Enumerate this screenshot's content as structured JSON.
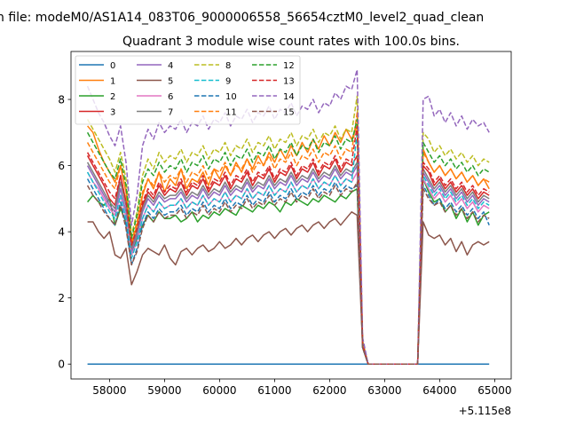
{
  "chart_data": {
    "type": "line",
    "suptitle": "n file: modeM0/AS1A14_083T06_9000006558_56654cztM0_level2_quad_clean",
    "title": "Quadrant 3 module wise count rates with 100.0s bins.",
    "xlabel": "",
    "ylabel": "",
    "x_offset_label": "+5.115e8",
    "x_offset": 511500000,
    "xlim": [
      57300,
      65300
    ],
    "ylim": [
      -0.45,
      9.45
    ],
    "xticks": [
      58000,
      59000,
      60000,
      61000,
      62000,
      63000,
      64000,
      65000
    ],
    "xtick_labels": [
      "58000",
      "59000",
      "60000",
      "61000",
      "62000",
      "63000",
      "64000",
      "65000"
    ],
    "yticks": [
      0,
      2,
      4,
      6,
      8
    ],
    "ytick_labels": [
      "0",
      "2",
      "4",
      "6",
      "8"
    ],
    "grid": false,
    "legend_position": "top-left",
    "legend_columns": 4,
    "data_gap": {
      "start": 62800,
      "end": 63600,
      "value": 0
    },
    "x_start": 57600,
    "x_end": 65000,
    "step": 100,
    "series": [
      {
        "name": "0",
        "color": "#1f77b4",
        "dash": "solid",
        "segA": [
          0,
          0,
          0,
          0,
          0,
          0,
          0,
          0,
          0,
          0,
          0,
          0,
          0,
          0,
          0,
          0,
          0,
          0,
          0,
          0,
          0,
          0,
          0,
          0,
          0,
          0,
          0,
          0,
          0,
          0,
          0,
          0,
          0,
          0,
          0,
          0,
          0,
          0,
          0,
          0,
          0,
          0,
          0,
          0,
          0,
          0,
          0,
          0,
          0,
          0,
          0,
          0
        ],
        "segB": [
          0,
          0,
          0,
          0,
          0,
          0,
          0,
          0,
          0,
          0,
          0,
          0,
          0,
          0
        ]
      },
      {
        "name": "1",
        "color": "#ff7f0e",
        "dash": "solid",
        "segA": [
          7.2,
          7.0,
          6.5,
          6.1,
          5.8,
          5.5,
          6.0,
          5.2,
          3.6,
          4.2,
          5.1,
          5.6,
          5.3,
          5.8,
          5.2,
          5.6,
          5.4,
          5.9,
          5.3,
          5.6,
          5.5,
          5.8,
          5.4,
          5.9,
          5.6,
          6.0,
          5.7,
          6.1,
          5.8,
          6.2,
          5.9,
          6.3,
          6.0,
          6.4,
          6.1,
          6.5,
          6.2,
          6.6,
          6.3,
          6.7,
          6.4,
          6.8,
          6.5,
          6.9,
          6.6,
          7.0,
          6.7,
          7.1,
          6.8,
          7.2,
          0.6,
          0
        ],
        "segB": [
          0,
          6.5,
          6.1,
          5.8,
          6.0,
          5.7,
          5.9,
          5.6,
          5.8,
          5.5,
          5.7,
          5.4,
          5.6,
          5.3
        ]
      },
      {
        "name": "2",
        "color": "#2ca02c",
        "dash": "solid",
        "segA": [
          4.9,
          5.1,
          4.9,
          4.8,
          5.0,
          4.2,
          4.7,
          4.3,
          3.3,
          3.8,
          4.2,
          4.5,
          4.3,
          4.6,
          4.4,
          4.4,
          4.5,
          4.3,
          4.4,
          4.6,
          4.3,
          4.5,
          4.4,
          4.6,
          4.5,
          4.7,
          4.6,
          4.5,
          4.8,
          4.7,
          4.6,
          4.8,
          4.7,
          4.9,
          4.8,
          4.6,
          4.9,
          4.8,
          5.0,
          4.9,
          4.8,
          5.0,
          4.9,
          5.1,
          5.0,
          4.9,
          5.1,
          5.0,
          5.2,
          5.3,
          0.5,
          0
        ],
        "segB": [
          0,
          5.6,
          5.2,
          4.9,
          5.0,
          4.6,
          4.8,
          4.4,
          4.7,
          4.3,
          4.6,
          4.2,
          4.5,
          4.6
        ]
      },
      {
        "name": "3",
        "color": "#d62728",
        "dash": "solid",
        "segA": [
          6.3,
          6.0,
          5.7,
          5.4,
          5.0,
          4.8,
          5.7,
          4.9,
          3.5,
          4.0,
          4.8,
          5.2,
          5.0,
          5.4,
          5.1,
          5.3,
          5.2,
          5.5,
          5.1,
          5.4,
          5.3,
          5.6,
          5.2,
          5.5,
          5.4,
          5.7,
          5.3,
          5.6,
          5.5,
          5.8,
          5.4,
          5.7,
          5.6,
          5.9,
          5.5,
          5.8,
          5.7,
          6.0,
          5.6,
          5.9,
          5.8,
          6.1,
          5.7,
          6.0,
          5.9,
          6.2,
          5.8,
          6.1,
          6.0,
          6.3,
          0.6,
          0
        ],
        "segB": [
          0,
          6.0,
          5.8,
          5.4,
          5.6,
          5.3,
          5.5,
          5.2,
          5.4,
          5.1,
          5.3,
          5.0,
          5.2,
          5.1
        ]
      },
      {
        "name": "4",
        "color": "#9467bd",
        "dash": "solid",
        "segA": [
          6.0,
          5.7,
          5.4,
          5.1,
          4.8,
          4.6,
          5.3,
          4.6,
          3.4,
          3.9,
          4.6,
          5.0,
          4.8,
          5.1,
          4.9,
          5.0,
          5.0,
          5.2,
          4.9,
          5.1,
          5.0,
          5.3,
          5.0,
          5.2,
          5.1,
          5.4,
          5.1,
          5.3,
          5.2,
          5.5,
          5.2,
          5.4,
          5.3,
          5.6,
          5.3,
          5.5,
          5.4,
          5.7,
          5.4,
          5.6,
          5.5,
          5.8,
          5.5,
          5.7,
          5.6,
          5.9,
          5.6,
          5.8,
          5.7,
          6.0,
          0.6,
          0
        ],
        "segB": [
          0,
          5.8,
          5.5,
          5.2,
          5.4,
          5.1,
          5.3,
          5.0,
          5.2,
          4.9,
          5.1,
          4.8,
          5.0,
          4.9
        ]
      },
      {
        "name": "5",
        "color": "#8c564b",
        "dash": "solid",
        "segA": [
          4.3,
          4.3,
          4.0,
          3.8,
          4.0,
          3.3,
          3.2,
          3.5,
          2.4,
          2.8,
          3.3,
          3.5,
          3.4,
          3.3,
          3.6,
          3.2,
          3.0,
          3.4,
          3.5,
          3.3,
          3.5,
          3.6,
          3.4,
          3.5,
          3.7,
          3.5,
          3.6,
          3.8,
          3.6,
          3.8,
          3.9,
          3.7,
          3.9,
          4.0,
          3.8,
          4.0,
          4.1,
          3.9,
          4.1,
          4.2,
          4.0,
          4.2,
          4.3,
          4.1,
          4.3,
          4.4,
          4.2,
          4.4,
          4.6,
          4.5,
          0.5,
          0
        ],
        "segB": [
          0,
          4.3,
          3.9,
          3.8,
          3.9,
          3.6,
          3.8,
          3.4,
          3.7,
          3.3,
          3.6,
          3.7,
          3.6,
          3.7
        ]
      },
      {
        "name": "6",
        "color": "#e377c2",
        "dash": "solid",
        "segA": [
          5.8,
          5.5,
          5.3,
          5.0,
          4.7,
          4.5,
          5.1,
          4.4,
          3.3,
          3.7,
          4.4,
          4.8,
          4.6,
          4.9,
          4.7,
          4.8,
          4.8,
          5.0,
          4.7,
          4.9,
          4.8,
          5.1,
          4.8,
          5.0,
          4.9,
          5.2,
          4.9,
          5.1,
          5.0,
          5.3,
          5.0,
          5.2,
          5.1,
          5.4,
          5.1,
          5.3,
          5.2,
          5.5,
          5.2,
          5.4,
          5.3,
          5.6,
          5.3,
          5.5,
          5.4,
          5.7,
          5.4,
          5.6,
          5.5,
          5.8,
          0.6,
          0
        ],
        "segB": [
          0,
          5.6,
          5.3,
          5.0,
          5.2,
          4.9,
          5.1,
          4.8,
          5.0,
          4.7,
          4.9,
          4.6,
          4.8,
          4.7
        ]
      },
      {
        "name": "7",
        "color": "#7f7f7f",
        "dash": "solid",
        "segA": [
          6.1,
          5.8,
          5.5,
          5.2,
          4.9,
          4.7,
          5.5,
          4.8,
          3.5,
          4.0,
          4.7,
          5.1,
          4.9,
          5.2,
          5.0,
          5.1,
          5.1,
          5.3,
          5.0,
          5.2,
          5.1,
          5.4,
          5.1,
          5.3,
          5.2,
          5.5,
          5.2,
          5.4,
          5.3,
          5.6,
          5.3,
          5.5,
          5.4,
          5.7,
          5.4,
          5.6,
          5.5,
          5.8,
          5.5,
          5.7,
          5.6,
          5.9,
          5.6,
          5.8,
          5.7,
          6.0,
          5.7,
          5.9,
          5.8,
          6.1,
          0.6,
          0
        ],
        "segB": [
          0,
          5.9,
          5.6,
          5.3,
          5.5,
          5.2,
          5.4,
          5.1,
          5.3,
          5.0,
          5.2,
          4.9,
          5.1,
          5.0
        ]
      },
      {
        "name": "8",
        "color": "#bcbd22",
        "dash": "dashed",
        "segA": [
          7.4,
          7.1,
          6.8,
          6.5,
          6.2,
          5.8,
          6.4,
          5.6,
          3.9,
          4.6,
          5.7,
          6.2,
          5.9,
          6.4,
          6.1,
          6.3,
          6.2,
          6.5,
          6.1,
          6.4,
          6.3,
          6.6,
          6.2,
          6.5,
          6.4,
          6.7,
          6.3,
          6.6,
          6.5,
          6.8,
          6.4,
          6.7,
          6.6,
          6.9,
          6.5,
          6.8,
          6.7,
          7.0,
          6.6,
          6.9,
          6.8,
          7.1,
          6.7,
          7.0,
          6.9,
          7.2,
          6.8,
          7.1,
          7.0,
          8.1,
          0.7,
          0
        ],
        "segB": [
          0,
          7.0,
          6.8,
          6.4,
          6.6,
          6.3,
          6.5,
          6.2,
          6.4,
          6.1,
          6.3,
          6.0,
          6.2,
          6.1
        ]
      },
      {
        "name": "9",
        "color": "#17becf",
        "dash": "dashed",
        "segA": [
          5.8,
          5.5,
          5.2,
          4.9,
          4.6,
          4.4,
          5.1,
          4.4,
          3.2,
          3.7,
          4.4,
          4.8,
          4.6,
          4.9,
          4.7,
          4.8,
          4.8,
          5.0,
          4.7,
          4.9,
          4.8,
          5.1,
          4.8,
          5.0,
          4.9,
          5.2,
          4.9,
          5.1,
          5.0,
          5.3,
          5.0,
          5.2,
          5.1,
          5.4,
          5.1,
          5.3,
          5.2,
          5.5,
          5.2,
          5.4,
          5.3,
          5.6,
          5.3,
          5.5,
          5.4,
          5.7,
          5.4,
          5.6,
          5.5,
          7.0,
          0.6,
          0
        ],
        "segB": [
          0,
          5.7,
          5.4,
          5.1,
          5.3,
          5.0,
          5.2,
          4.9,
          5.1,
          4.8,
          5.0,
          4.7,
          4.9,
          4.8
        ]
      },
      {
        "name": "10",
        "color": "#1f77b4",
        "dash": "dashed",
        "segA": [
          5.6,
          5.3,
          5.0,
          4.7,
          4.4,
          4.2,
          4.9,
          4.2,
          3.0,
          3.5,
          4.2,
          4.6,
          4.4,
          4.7,
          4.5,
          4.6,
          4.6,
          4.8,
          4.5,
          4.7,
          4.6,
          4.9,
          4.6,
          4.8,
          4.7,
          5.0,
          4.7,
          4.9,
          4.8,
          5.1,
          4.8,
          5.0,
          4.9,
          5.2,
          4.9,
          5.1,
          5.0,
          5.3,
          5.0,
          5.2,
          5.1,
          5.4,
          5.1,
          5.3,
          5.2,
          5.5,
          5.2,
          5.4,
          5.3,
          5.4,
          0.5,
          0
        ],
        "segB": [
          0,
          5.4,
          5.1,
          4.8,
          5.0,
          4.7,
          4.9,
          4.6,
          4.8,
          4.5,
          4.7,
          4.4,
          4.6,
          4.2
        ]
      },
      {
        "name": "11",
        "color": "#ff7f0e",
        "dash": "dashed",
        "segA": [
          6.7,
          6.4,
          6.1,
          5.8,
          5.5,
          5.3,
          6.0,
          5.2,
          3.7,
          4.3,
          5.2,
          5.6,
          5.4,
          5.8,
          5.5,
          5.7,
          5.6,
          5.9,
          5.5,
          5.8,
          5.7,
          6.0,
          5.6,
          5.9,
          5.8,
          6.1,
          5.7,
          6.0,
          5.9,
          6.2,
          5.8,
          6.1,
          6.0,
          6.3,
          5.9,
          6.2,
          6.1,
          6.4,
          6.0,
          6.3,
          6.2,
          6.5,
          6.1,
          6.4,
          6.3,
          6.6,
          6.2,
          6.5,
          6.4,
          7.6,
          0.6,
          0
        ],
        "segB": [
          0,
          6.4,
          6.1,
          5.8,
          6.0,
          5.7,
          5.9,
          5.6,
          5.8,
          5.5,
          5.7,
          5.4,
          5.6,
          5.5
        ]
      },
      {
        "name": "12",
        "color": "#2ca02c",
        "dash": "dashed",
        "segA": [
          7.0,
          6.7,
          6.4,
          6.1,
          5.8,
          5.6,
          6.2,
          5.4,
          3.8,
          4.5,
          5.5,
          5.9,
          5.7,
          6.1,
          5.8,
          6.0,
          5.9,
          6.2,
          5.8,
          6.1,
          6.0,
          6.3,
          5.9,
          6.2,
          6.1,
          6.4,
          6.0,
          6.3,
          6.2,
          6.5,
          6.1,
          6.4,
          6.3,
          6.6,
          6.2,
          6.5,
          6.4,
          6.7,
          6.3,
          6.6,
          6.5,
          6.8,
          6.4,
          6.7,
          6.6,
          6.9,
          6.5,
          6.8,
          6.7,
          7.4,
          0.6,
          0
        ],
        "segB": [
          0,
          6.7,
          6.4,
          6.1,
          6.3,
          6.0,
          6.2,
          5.9,
          6.1,
          5.8,
          6.0,
          5.7,
          5.9,
          5.8
        ]
      },
      {
        "name": "13",
        "color": "#d62728",
        "dash": "dashed",
        "segA": [
          6.4,
          6.1,
          5.8,
          5.5,
          5.2,
          5.0,
          5.7,
          4.9,
          3.6,
          4.1,
          4.9,
          5.3,
          5.1,
          5.5,
          5.2,
          5.4,
          5.3,
          5.6,
          5.2,
          5.5,
          5.4,
          5.7,
          5.3,
          5.6,
          5.5,
          5.8,
          5.4,
          5.7,
          5.6,
          5.9,
          5.5,
          5.8,
          5.7,
          6.0,
          5.6,
          5.9,
          5.8,
          6.1,
          5.7,
          6.0,
          5.9,
          6.2,
          5.8,
          6.1,
          6.0,
          6.3,
          5.9,
          6.2,
          6.1,
          7.2,
          0.6,
          0
        ],
        "segB": [
          0,
          6.1,
          5.9,
          5.5,
          5.7,
          5.4,
          5.6,
          5.3,
          5.5,
          5.2,
          5.4,
          5.1,
          5.3,
          5.2
        ]
      },
      {
        "name": "14",
        "color": "#9467bd",
        "dash": "dashed",
        "segA": [
          8.4,
          8.0,
          7.6,
          7.3,
          6.9,
          6.6,
          7.2,
          6.1,
          4.2,
          5.1,
          6.6,
          7.1,
          6.8,
          7.3,
          7.0,
          7.2,
          7.1,
          7.4,
          7.0,
          7.3,
          7.2,
          7.5,
          7.1,
          7.4,
          7.3,
          7.6,
          7.2,
          7.5,
          7.4,
          7.7,
          7.3,
          7.6,
          7.5,
          7.8,
          7.4,
          7.7,
          7.6,
          7.9,
          7.5,
          7.8,
          7.7,
          8.0,
          7.6,
          7.9,
          7.8,
          8.2,
          8.0,
          8.4,
          8.3,
          8.9,
          0.8,
          0
        ],
        "segB": [
          0,
          8.0,
          8.1,
          7.5,
          7.7,
          7.3,
          7.6,
          7.2,
          7.5,
          7.1,
          7.4,
          7.2,
          7.3,
          7.0
        ]
      },
      {
        "name": "15",
        "color": "#8c564b",
        "dash": "dashed",
        "segA": [
          5.4,
          5.1,
          4.9,
          4.6,
          4.4,
          4.2,
          4.8,
          4.1,
          3.0,
          3.4,
          4.1,
          4.5,
          4.3,
          4.6,
          4.4,
          4.5,
          4.5,
          4.7,
          4.4,
          4.6,
          4.5,
          4.8,
          4.5,
          4.7,
          4.6,
          4.9,
          4.6,
          4.8,
          4.7,
          5.0,
          4.7,
          4.9,
          4.8,
          5.1,
          4.8,
          5.0,
          4.9,
          5.2,
          4.9,
          5.1,
          5.0,
          5.3,
          5.0,
          5.2,
          5.1,
          5.4,
          5.1,
          5.3,
          5.2,
          5.5,
          0.5,
          0
        ],
        "segB": [
          0,
          5.3,
          5.0,
          4.8,
          4.9,
          4.6,
          4.8,
          4.5,
          4.7,
          4.4,
          4.6,
          4.3,
          4.5,
          4.4
        ]
      }
    ]
  }
}
